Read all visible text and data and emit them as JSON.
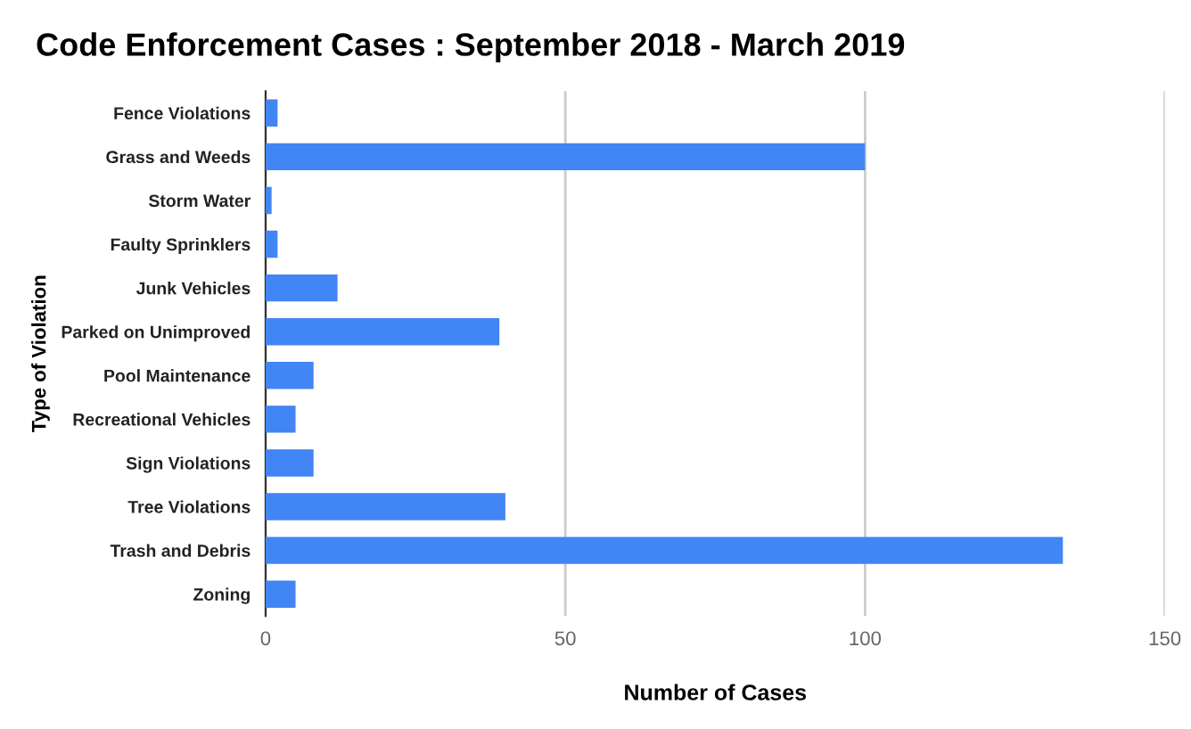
{
  "chart_data": {
    "type": "bar",
    "orientation": "horizontal",
    "title": "Code Enforcement Cases : September 2018 - March 2019",
    "xlabel": "Number of Cases",
    "ylabel": "Type of Violation",
    "categories": [
      "Fence Violations",
      "Grass and Weeds",
      "Storm Water",
      "Faulty Sprinklers",
      "Junk Vehicles",
      "Parked on Unimproved",
      "Pool Maintenance",
      "Recreational Vehicles",
      "Sign Violations",
      "Tree Violations",
      "Trash and Debris",
      "Zoning"
    ],
    "values": [
      2,
      100,
      1,
      2,
      12,
      39,
      8,
      5,
      8,
      40,
      133,
      5
    ],
    "color": "#4285f4",
    "xlim": [
      0,
      150
    ],
    "xticks": [
      0,
      50,
      100,
      150
    ],
    "grid": "x"
  }
}
